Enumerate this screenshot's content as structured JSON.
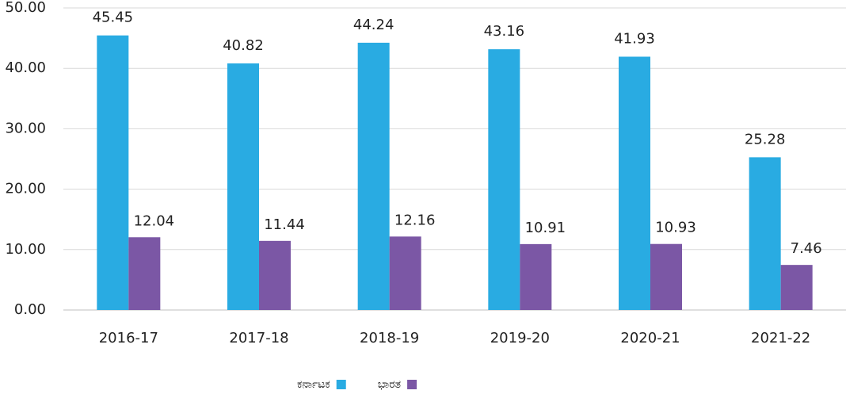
{
  "chart_data": {
    "type": "bar",
    "categories": [
      "2016-17",
      "2017-18",
      "2018-19",
      "2019-20",
      "2020-21",
      "2021-22"
    ],
    "series": [
      {
        "name": "ಕರ್ನಾಟಕ",
        "color": "#29abe2",
        "values": [
          45.45,
          40.82,
          44.24,
          43.16,
          41.93,
          25.28
        ]
      },
      {
        "name": "ಭಾರತ",
        "color": "#7b57a5",
        "values": [
          12.04,
          11.44,
          12.16,
          10.91,
          10.93,
          7.46
        ]
      }
    ],
    "ylim": [
      0,
      50
    ],
    "yticks": [
      {
        "value": 0,
        "label": "0.00"
      },
      {
        "value": 10,
        "label": "10.00"
      },
      {
        "value": 20,
        "label": "20.00"
      },
      {
        "value": 30,
        "label": "30.00"
      },
      {
        "value": 40,
        "label": "40.00"
      },
      {
        "value": 50,
        "label": "50.00"
      }
    ],
    "grid": true,
    "legend": "bottom"
  }
}
